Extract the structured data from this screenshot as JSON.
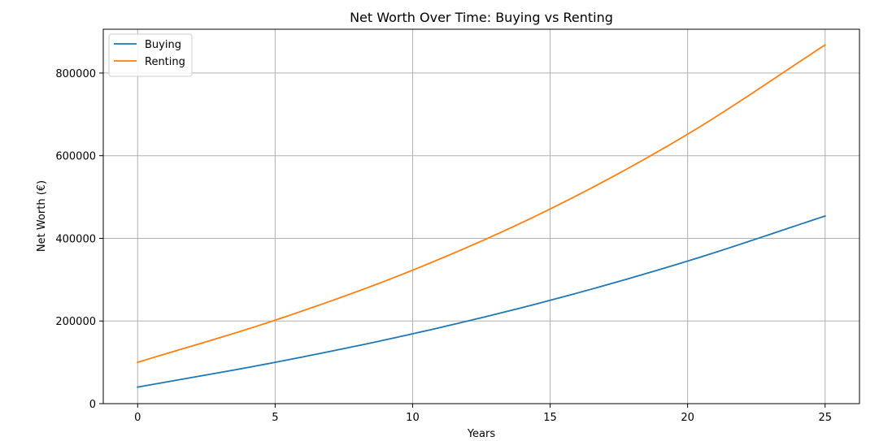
{
  "chart_data": {
    "type": "line",
    "title": "Net Worth Over Time: Buying vs Renting",
    "xlabel": "Years",
    "ylabel": "Net Worth (€)",
    "xlim": [
      -1.25,
      26.25
    ],
    "ylim": [
      0,
      906000
    ],
    "xticks": [
      0,
      5,
      10,
      15,
      20,
      25
    ],
    "yticks": [
      0,
      200000,
      400000,
      600000,
      800000
    ],
    "grid": true,
    "legend_position": "top-left",
    "x": [
      0,
      5,
      10,
      15,
      20,
      25
    ],
    "series": [
      {
        "name": "Buying",
        "color": "#1f77b4",
        "values": [
          40000,
          100000,
          169000,
          250000,
          345000,
          454000
        ]
      },
      {
        "name": "Renting",
        "color": "#ff7f0e",
        "values": [
          100000,
          202000,
          323000,
          471000,
          652000,
          868000
        ]
      }
    ]
  }
}
